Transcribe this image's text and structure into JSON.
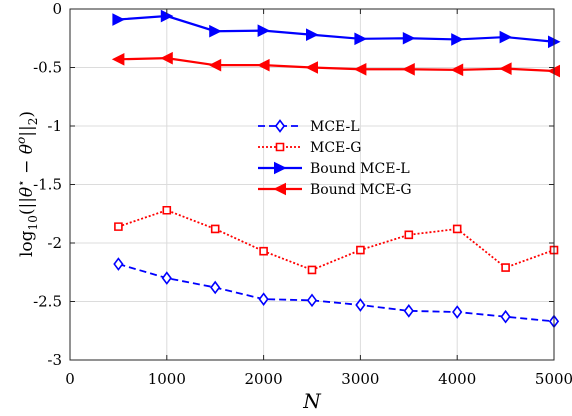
{
  "chart_data": {
    "type": "line",
    "xlabel": "N",
    "ylabel": "log10(||θ* − θo||2)",
    "xlim": [
      0,
      5000
    ],
    "ylim": [
      -3,
      0
    ],
    "xticks": [
      "0",
      "1000",
      "2000",
      "3000",
      "4000",
      "5000"
    ],
    "yticks": [
      "0",
      "-0.5",
      "-1",
      "-1.5",
      "-2",
      "-2.5",
      "-3"
    ],
    "grid": true,
    "legend_position": "center",
    "x": [
      500,
      1000,
      1500,
      2000,
      2500,
      3000,
      3500,
      4000,
      4500,
      5000
    ],
    "series": [
      {
        "name": "MCE-L",
        "color": "#0000ff",
        "line": "dashed",
        "marker": "diamond",
        "values": [
          -2.18,
          -2.3,
          -2.38,
          -2.48,
          -2.49,
          -2.53,
          -2.58,
          -2.59,
          -2.63,
          -2.67
        ]
      },
      {
        "name": "MCE-G",
        "color": "#ff0000",
        "line": "dotted",
        "marker": "square",
        "values": [
          -1.86,
          -1.72,
          -1.88,
          -2.07,
          -2.23,
          -2.06,
          -1.93,
          -1.88,
          -2.21,
          -2.06
        ]
      },
      {
        "name": "Bound MCE-L",
        "color": "#0000ff",
        "line": "solid",
        "marker": "triangle-right",
        "values": [
          -0.09,
          -0.06,
          -0.19,
          -0.185,
          -0.22,
          -0.255,
          -0.25,
          -0.26,
          -0.24,
          -0.28
        ]
      },
      {
        "name": "Bound MCE-G",
        "color": "#ff0000",
        "line": "solid",
        "marker": "triangle-left",
        "values": [
          -0.43,
          -0.42,
          -0.48,
          -0.48,
          -0.5,
          -0.515,
          -0.515,
          -0.52,
          -0.51,
          -0.53
        ]
      }
    ]
  }
}
